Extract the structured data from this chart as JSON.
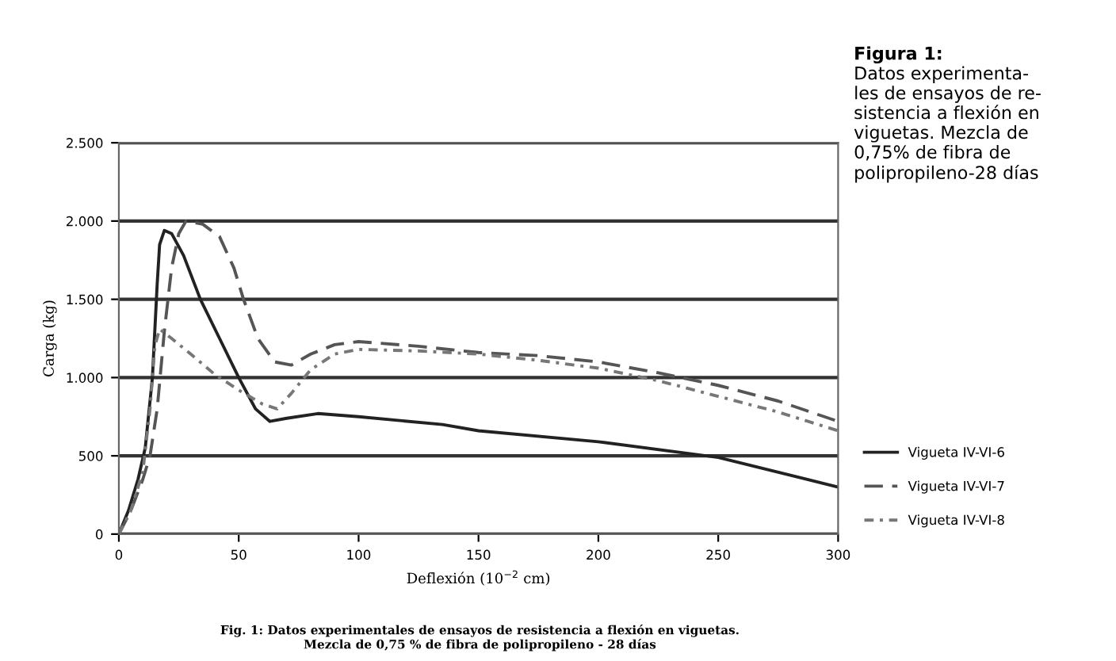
{
  "chart_data": {
    "type": "line",
    "xlabel": "Deflexión (10$^{−2}$ cm)",
    "ylabel": "Carga (kg)",
    "xlim": [
      0,
      300
    ],
    "xticks": [
      0,
      50,
      100,
      150,
      200,
      250,
      300
    ],
    "ylim": [
      0,
      2500
    ],
    "yticks": [
      {
        "value": 0,
        "label": "0"
      },
      {
        "value": 500,
        "label": "500"
      },
      {
        "value": 1000,
        "label": "1.000"
      },
      {
        "value": 1500,
        "label": "1.500"
      },
      {
        "value": 2000,
        "label": "2.000"
      },
      {
        "value": 2500,
        "label": "2.500"
      }
    ],
    "grid": "y",
    "legend": "right",
    "marker": "none",
    "series": [
      {
        "name": "Vigueta IV-VI-6",
        "color": "#222222",
        "line_style": "solid",
        "x": [
          0,
          4,
          8,
          11,
          14,
          16,
          17,
          19,
          22,
          27,
          34,
          42,
          50,
          57,
          63,
          70,
          83,
          100,
          135,
          150,
          200,
          250,
          300
        ],
        "values": [
          0,
          150,
          350,
          550,
          1000,
          1600,
          1850,
          1940,
          1920,
          1780,
          1500,
          1250,
          1000,
          800,
          720,
          740,
          770,
          750,
          700,
          660,
          590,
          490,
          300
        ]
      },
      {
        "name": "Vigueta IV-VI-7",
        "color": "#555555",
        "line_style": "dashed",
        "x": [
          0,
          5,
          10,
          13,
          16,
          19,
          22,
          25,
          28,
          35,
          42,
          48,
          52,
          58,
          65,
          72,
          80,
          90,
          100,
          125,
          150,
          175,
          200,
          225,
          250,
          275,
          300
        ],
        "values": [
          0,
          150,
          350,
          500,
          800,
          1300,
          1700,
          1920,
          2000,
          1980,
          1900,
          1700,
          1500,
          1250,
          1100,
          1080,
          1150,
          1210,
          1230,
          1200,
          1160,
          1140,
          1100,
          1030,
          950,
          850,
          720
        ]
      },
      {
        "name": "Vigueta IV-VI-8",
        "color": "#777777",
        "line_style": "dashdot",
        "x": [
          0,
          5,
          10,
          13,
          15,
          17,
          22,
          30,
          40,
          50,
          60,
          66,
          72,
          80,
          90,
          100,
          125,
          150,
          175,
          200,
          225,
          250,
          275,
          300
        ],
        "values": [
          0,
          150,
          400,
          800,
          1200,
          1310,
          1250,
          1150,
          1020,
          920,
          830,
          800,
          900,
          1050,
          1150,
          1180,
          1170,
          1150,
          1110,
          1060,
          980,
          880,
          780,
          660
        ]
      }
    ],
    "annotations": [
      "Figura 1:",
      "Datos experimenta-\nles de ensayos de re-\nsistencia a flexión en\nviguetas. Mezcla de\n0,75% de fibra de\npolipropileno-28 días",
      "Fig. 1: Datos experimentales de ensayos de resistencia a flexión en viguetas.\nMezcla de 0,75 % de fibra de polipropileno - 28 días"
    ]
  }
}
